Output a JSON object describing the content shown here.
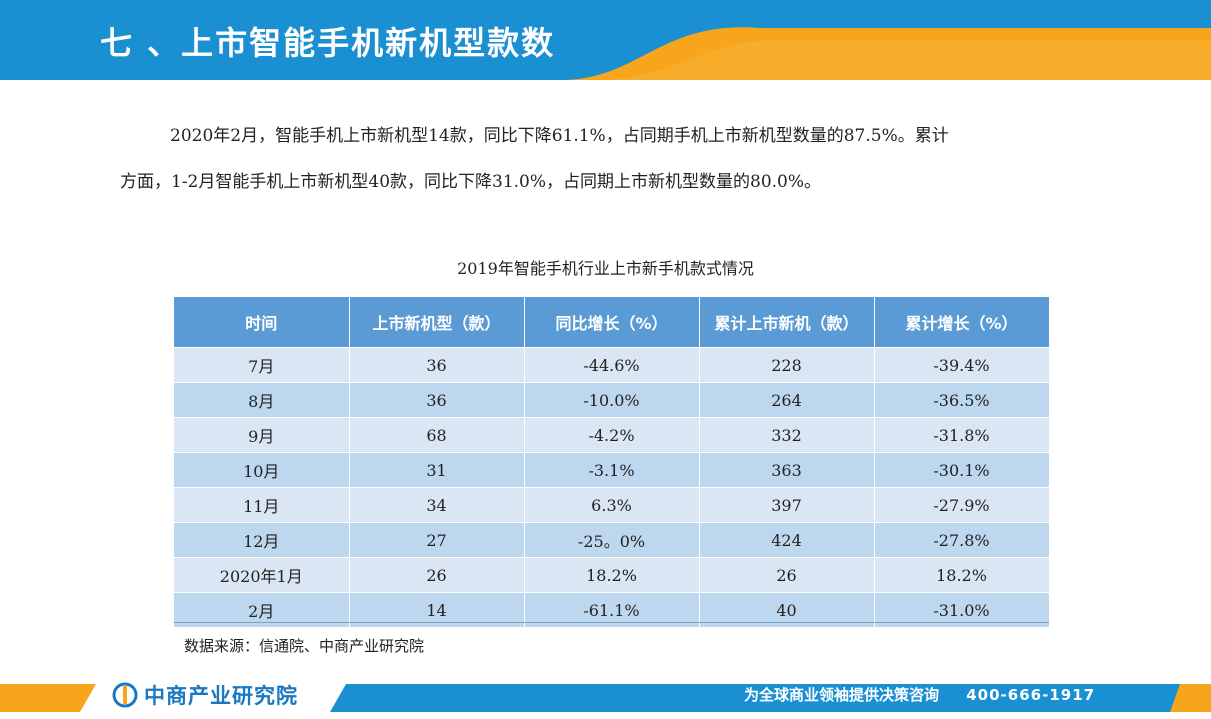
{
  "header": {
    "title": "七 、上市智能手机新机型款数",
    "accent_color": "#f7a51c",
    "bg_color": "#1a8fd1"
  },
  "paragraph": {
    "line1": "2020年2月，智能手机上市新机型14款，同比下降61.1%，占同期手机上市新机型数量的87.5%。累计",
    "line2": "方面，1-2月智能手机上市新机型40款，同比下降31.0%，占同期上市新机型数量的80.0%。"
  },
  "table": {
    "title": "2019年智能手机行业上市新手机款式情况",
    "columns": [
      "时间",
      "上市新机型（款）",
      "同比增长（%）",
      "累计上市新机（款）",
      "累计增长（%）"
    ],
    "rows": [
      [
        "7月",
        "36",
        "-44.6%",
        "228",
        "-39.4%"
      ],
      [
        "8月",
        "36",
        "-10.0%",
        "264",
        "-36.5%"
      ],
      [
        "9月",
        "68",
        "-4.2%",
        "332",
        "-31.8%"
      ],
      [
        "10月",
        "31",
        "-3.1%",
        "363",
        "-30.1%"
      ],
      [
        "11月",
        "34",
        "6.3%",
        "397",
        "-27.9%"
      ],
      [
        "12月",
        "27",
        "-25。0%",
        "424",
        "-27.8%"
      ],
      [
        "2020年1月",
        "26",
        "18.2%",
        "26",
        "18.2%"
      ],
      [
        "2月",
        "14",
        "-61.1%",
        "40",
        "-31.0%"
      ]
    ]
  },
  "source": "数据来源：信通院、中商产业研究院",
  "footer": {
    "logo_text": "中商产业研究院",
    "slogan": "为全球商业领袖提供决策咨询",
    "phone": "400-666-1917",
    "bar_color": "#1a8fd1",
    "accent_color": "#f7a51c"
  }
}
